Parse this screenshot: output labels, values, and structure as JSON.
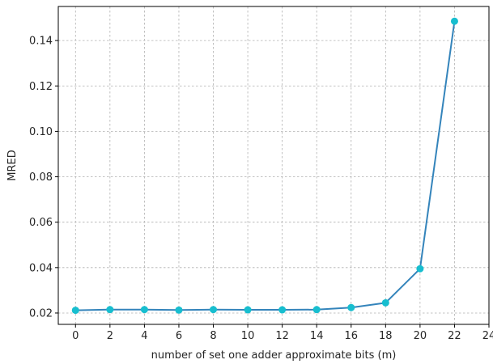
{
  "chart_data": {
    "type": "line",
    "title": "",
    "xlabel": "number of set one adder approximate bits (m)",
    "ylabel": "MRED",
    "xlim": [
      -1,
      24
    ],
    "ylim": [
      0.015,
      0.155
    ],
    "x_ticks": [
      0,
      2,
      4,
      6,
      8,
      10,
      12,
      14,
      16,
      18,
      20,
      22,
      24
    ],
    "x_tick_labels": [
      "0",
      "2",
      "4",
      "6",
      "8",
      "10",
      "12",
      "14",
      "16",
      "18",
      "20",
      "22",
      "24"
    ],
    "y_ticks": [
      0.02,
      0.04,
      0.06,
      0.08,
      0.1,
      0.12,
      0.14
    ],
    "y_tick_labels": [
      "0.02",
      "0.04",
      "0.06",
      "0.08",
      "0.10",
      "0.12",
      "0.14"
    ],
    "grid": true,
    "series": [
      {
        "x": [
          0,
          2,
          4,
          6,
          8,
          10,
          12,
          14,
          16,
          18,
          20,
          22
        ],
        "y": [
          0.0212,
          0.0215,
          0.0215,
          0.0213,
          0.0215,
          0.0214,
          0.0214,
          0.0215,
          0.0224,
          0.0245,
          0.0395,
          0.1485
        ],
        "line_color": "#3484bb",
        "marker_color": "#17becf"
      }
    ]
  }
}
